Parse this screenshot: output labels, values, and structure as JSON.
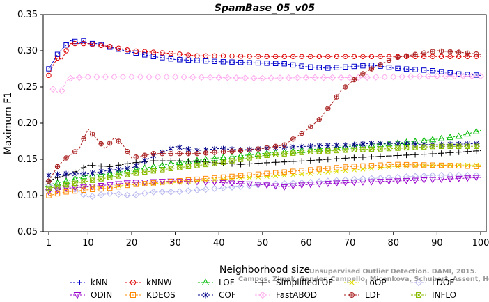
{
  "chart_data": {
    "type": "line",
    "title": "SpamBase_05_v05",
    "xlabel": "Neighborhood size",
    "ylabel": "Maximum F1",
    "xlim": [
      1,
      100
    ],
    "ylim": [
      0.05,
      0.35
    ],
    "x_ticks": [
      1,
      10,
      20,
      30,
      40,
      50,
      60,
      70,
      80,
      90,
      100
    ],
    "y_ticks": [
      "0.05",
      "0.10",
      "0.15",
      "0.20",
      "0.25",
      "0.30",
      "0.35"
    ],
    "grid": false,
    "legend_position": "bottom",
    "watermark": [
      "Unsupervised Outlier Detection. DAMI, 2015.",
      "Campos, Zimek, Sander, Campello, Micenkova, Schubert, Assent, Houle"
    ],
    "series": [
      {
        "name": "kNN",
        "color": "#0000cc",
        "marker": "square",
        "dash": "3,2",
        "points": [
          [
            1,
            0.275
          ],
          [
            2,
            0.285
          ],
          [
            3,
            0.295
          ],
          [
            4,
            0.302
          ],
          [
            5,
            0.308
          ],
          [
            6,
            0.314
          ],
          [
            7,
            0.313
          ],
          [
            8,
            0.31
          ],
          [
            9,
            0.314
          ],
          [
            10,
            0.31
          ],
          [
            12,
            0.31
          ],
          [
            15,
            0.305
          ],
          [
            20,
            0.298
          ],
          [
            25,
            0.292
          ],
          [
            30,
            0.288
          ],
          [
            40,
            0.285
          ],
          [
            50,
            0.283
          ],
          [
            55,
            0.282
          ],
          [
            60,
            0.278
          ],
          [
            65,
            0.276
          ],
          [
            70,
            0.278
          ],
          [
            75,
            0.28
          ],
          [
            78,
            0.278
          ],
          [
            80,
            0.276
          ],
          [
            85,
            0.274
          ],
          [
            90,
            0.272
          ],
          [
            95,
            0.268
          ],
          [
            100,
            0.266
          ]
        ]
      },
      {
        "name": "kNNW",
        "color": "#dd0000",
        "marker": "circle",
        "dash": "3,2",
        "points": [
          [
            1,
            0.266
          ],
          [
            2,
            0.28
          ],
          [
            3,
            0.29
          ],
          [
            4,
            0.288
          ],
          [
            5,
            0.3
          ],
          [
            6,
            0.31
          ],
          [
            8,
            0.31
          ],
          [
            10,
            0.31
          ],
          [
            12,
            0.308
          ],
          [
            15,
            0.306
          ],
          [
            20,
            0.3
          ],
          [
            25,
            0.298
          ],
          [
            30,
            0.296
          ],
          [
            35,
            0.293
          ],
          [
            40,
            0.293
          ],
          [
            50,
            0.292
          ],
          [
            60,
            0.292
          ],
          [
            70,
            0.292
          ],
          [
            80,
            0.292
          ],
          [
            90,
            0.292
          ],
          [
            100,
            0.292
          ]
        ]
      },
      {
        "name": "LOF",
        "color": "#00bb00",
        "marker": "triangle",
        "dash": "3,2",
        "points": [
          [
            1,
            0.115
          ],
          [
            5,
            0.12
          ],
          [
            10,
            0.128
          ],
          [
            15,
            0.13
          ],
          [
            20,
            0.135
          ],
          [
            25,
            0.14
          ],
          [
            30,
            0.145
          ],
          [
            40,
            0.152
          ],
          [
            50,
            0.158
          ],
          [
            60,
            0.163
          ],
          [
            70,
            0.168
          ],
          [
            80,
            0.172
          ],
          [
            90,
            0.178
          ],
          [
            95,
            0.182
          ],
          [
            100,
            0.19
          ]
        ]
      },
      {
        "name": "SimplifiedLOF",
        "color": "#000000",
        "marker": "plus",
        "dash": "3,2",
        "points": [
          [
            1,
            0.12
          ],
          [
            3,
            0.125
          ],
          [
            5,
            0.128
          ],
          [
            8,
            0.135
          ],
          [
            10,
            0.142
          ],
          [
            15,
            0.14
          ],
          [
            20,
            0.145
          ],
          [
            25,
            0.148
          ],
          [
            30,
            0.148
          ],
          [
            35,
            0.147
          ],
          [
            40,
            0.145
          ],
          [
            45,
            0.143
          ],
          [
            50,
            0.145
          ],
          [
            60,
            0.148
          ],
          [
            70,
            0.152
          ],
          [
            80,
            0.155
          ],
          [
            90,
            0.158
          ],
          [
            100,
            0.162
          ]
        ]
      },
      {
        "name": "LoOP",
        "color": "#dddd00",
        "marker": "x",
        "dash": "3,2",
        "points": [
          [
            1,
            0.105
          ],
          [
            5,
            0.11
          ],
          [
            10,
            0.112
          ],
          [
            15,
            0.113
          ],
          [
            20,
            0.115
          ],
          [
            30,
            0.118
          ],
          [
            40,
            0.122
          ],
          [
            50,
            0.126
          ],
          [
            60,
            0.13
          ],
          [
            70,
            0.135
          ],
          [
            80,
            0.14
          ],
          [
            90,
            0.142
          ],
          [
            100,
            0.142
          ]
        ]
      },
      {
        "name": "LDOF",
        "color": "#b8b8ee",
        "marker": "diamond",
        "dash": "3,2",
        "points": [
          [
            1,
            0.115
          ],
          [
            3,
            0.112
          ],
          [
            5,
            0.115
          ],
          [
            8,
            0.105
          ],
          [
            10,
            0.098
          ],
          [
            12,
            0.1
          ],
          [
            15,
            0.103
          ],
          [
            20,
            0.1
          ],
          [
            25,
            0.105
          ],
          [
            30,
            0.105
          ],
          [
            40,
            0.11
          ],
          [
            50,
            0.115
          ],
          [
            60,
            0.118
          ],
          [
            70,
            0.122
          ],
          [
            80,
            0.125
          ],
          [
            90,
            0.128
          ],
          [
            100,
            0.128
          ]
        ]
      },
      {
        "name": "ODIN",
        "color": "#9900cc",
        "marker": "tri-down",
        "dash": "3,2",
        "points": [
          [
            1,
            0.105
          ],
          [
            5,
            0.11
          ],
          [
            10,
            0.112
          ],
          [
            15,
            0.115
          ],
          [
            20,
            0.118
          ],
          [
            30,
            0.12
          ],
          [
            40,
            0.118
          ],
          [
            50,
            0.115
          ],
          [
            55,
            0.112
          ],
          [
            60,
            0.115
          ],
          [
            70,
            0.118
          ],
          [
            80,
            0.12
          ],
          [
            90,
            0.122
          ],
          [
            100,
            0.125
          ]
        ]
      },
      {
        "name": "KDEOS",
        "color": "#ff8800",
        "marker": "square",
        "dash": "3,2",
        "points": [
          [
            1,
            0.1
          ],
          [
            5,
            0.105
          ],
          [
            10,
            0.108
          ],
          [
            15,
            0.11
          ],
          [
            20,
            0.115
          ],
          [
            30,
            0.12
          ],
          [
            40,
            0.125
          ],
          [
            50,
            0.13
          ],
          [
            60,
            0.135
          ],
          [
            70,
            0.14
          ],
          [
            80,
            0.143
          ],
          [
            90,
            0.142
          ],
          [
            100,
            0.14
          ]
        ]
      },
      {
        "name": "COF",
        "color": "#000088",
        "marker": "asterisk",
        "dash": "3,2",
        "points": [
          [
            1,
            0.128
          ],
          [
            5,
            0.13
          ],
          [
            10,
            0.13
          ],
          [
            15,
            0.135
          ],
          [
            20,
            0.138
          ],
          [
            25,
            0.155
          ],
          [
            28,
            0.162
          ],
          [
            30,
            0.168
          ],
          [
            32,
            0.165
          ],
          [
            35,
            0.162
          ],
          [
            40,
            0.165
          ],
          [
            45,
            0.163
          ],
          [
            50,
            0.165
          ],
          [
            55,
            0.167
          ],
          [
            60,
            0.168
          ],
          [
            70,
            0.17
          ],
          [
            75,
            0.172
          ],
          [
            80,
            0.172
          ],
          [
            90,
            0.17
          ],
          [
            100,
            0.172
          ]
        ]
      },
      {
        "name": "FastABOD",
        "color": "#ffaaee",
        "marker": "diamond",
        "dash": "3,2",
        "points": [
          [
            2,
            0.247
          ],
          [
            3,
            0.243
          ],
          [
            4,
            0.245
          ],
          [
            5,
            0.258
          ],
          [
            6,
            0.262
          ],
          [
            8,
            0.263
          ],
          [
            10,
            0.264
          ],
          [
            15,
            0.264
          ],
          [
            20,
            0.264
          ],
          [
            30,
            0.264
          ],
          [
            40,
            0.263
          ],
          [
            50,
            0.262
          ],
          [
            60,
            0.263
          ],
          [
            70,
            0.263
          ],
          [
            80,
            0.264
          ],
          [
            90,
            0.265
          ],
          [
            100,
            0.265
          ]
        ]
      },
      {
        "name": "LDF",
        "color": "#aa2222",
        "marker": "circle-plus",
        "dash": "3,2",
        "points": [
          [
            1,
            0.12
          ],
          [
            3,
            0.14
          ],
          [
            5,
            0.152
          ],
          [
            8,
            0.165
          ],
          [
            10,
            0.192
          ],
          [
            12,
            0.178
          ],
          [
            14,
            0.165
          ],
          [
            16,
            0.18
          ],
          [
            18,
            0.17
          ],
          [
            20,
            0.152
          ],
          [
            25,
            0.158
          ],
          [
            30,
            0.158
          ],
          [
            35,
            0.158
          ],
          [
            40,
            0.16
          ],
          [
            45,
            0.162
          ],
          [
            50,
            0.165
          ],
          [
            55,
            0.17
          ],
          [
            60,
            0.19
          ],
          [
            63,
            0.205
          ],
          [
            66,
            0.228
          ],
          [
            68,
            0.245
          ],
          [
            70,
            0.255
          ],
          [
            72,
            0.265
          ],
          [
            75,
            0.275
          ],
          [
            80,
            0.29
          ],
          [
            85,
            0.295
          ],
          [
            90,
            0.3
          ],
          [
            95,
            0.298
          ],
          [
            100,
            0.295
          ]
        ]
      },
      {
        "name": "INFLO",
        "color": "#88bb00",
        "marker": "square-x",
        "dash": "3,2",
        "points": [
          [
            1,
            0.11
          ],
          [
            5,
            0.115
          ],
          [
            10,
            0.12
          ],
          [
            15,
            0.125
          ],
          [
            20,
            0.13
          ],
          [
            30,
            0.138
          ],
          [
            40,
            0.145
          ],
          [
            50,
            0.155
          ],
          [
            60,
            0.16
          ],
          [
            70,
            0.163
          ],
          [
            80,
            0.165
          ],
          [
            90,
            0.168
          ],
          [
            100,
            0.168
          ]
        ]
      }
    ]
  }
}
